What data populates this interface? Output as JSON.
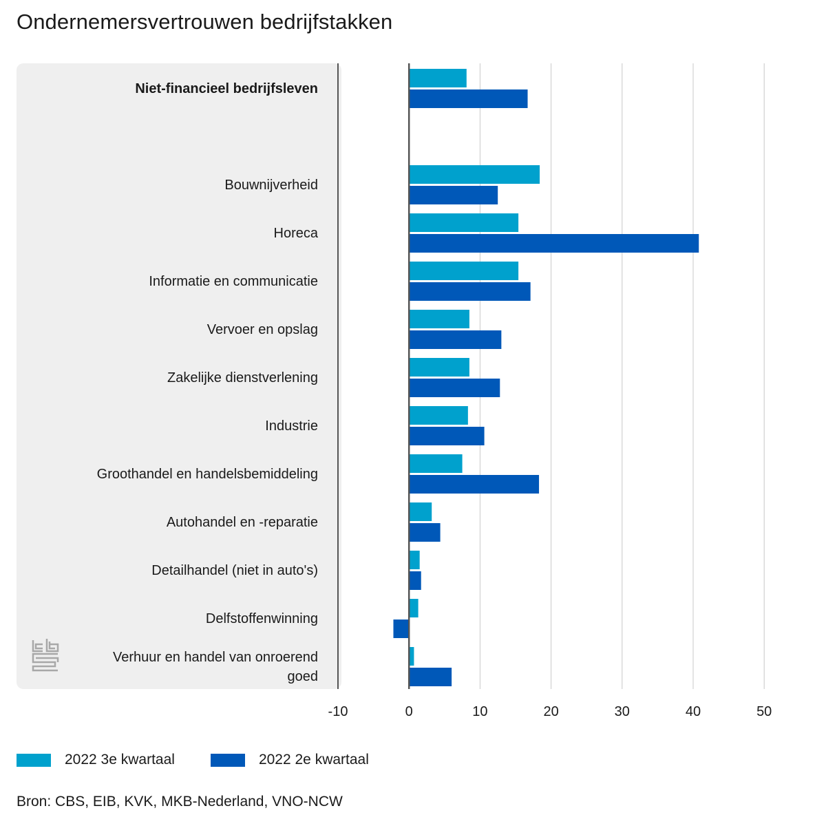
{
  "chart_data": {
    "type": "bar",
    "orientation": "horizontal",
    "title": "Ondernemersvertrouwen bedrijfstakken",
    "categories": [
      "Niet-financieel bedrijfsleven",
      "Bouwnijverheid",
      "Horeca",
      "Informatie en communicatie",
      "Vervoer en opslag",
      "Zakelijke dienstverlening",
      "Industrie",
      "Groothandel en handelsbemiddeling",
      "Autohandel en -reparatie",
      "Detailhandel (niet in auto's)",
      "Delfstoffenwinning",
      "Verhuur en handel van onroerend goed"
    ],
    "category_label_lines": [
      [
        "Niet-financieel bedrijfsleven"
      ],
      [
        "Bouwnijverheid"
      ],
      [
        "Horeca"
      ],
      [
        "Informatie en communicatie"
      ],
      [
        "Vervoer en opslag"
      ],
      [
        "Zakelijke dienstverlening"
      ],
      [
        "Industrie"
      ],
      [
        "Groothandel en handelsbemiddeling"
      ],
      [
        "Autohandel en -reparatie"
      ],
      [
        "Detailhandel (niet in auto's)"
      ],
      [
        "Delfstoffenwinning"
      ],
      [
        "Verhuur en handel van onroerend",
        "goed"
      ]
    ],
    "highlighted_category": "Niet-financieel bedrijfsleven",
    "series": [
      {
        "name": "2022 3e kwartaal",
        "color": "#00A1CD",
        "values": [
          8.1,
          18.4,
          15.4,
          15.4,
          8.5,
          8.5,
          8.3,
          7.5,
          3.2,
          1.5,
          1.3,
          0.7
        ]
      },
      {
        "name": "2022 2e kwartaal",
        "color": "#0058B8",
        "values": [
          16.7,
          12.5,
          40.8,
          17.1,
          13.0,
          12.8,
          10.6,
          18.3,
          4.4,
          1.7,
          -2.2,
          6.0
        ]
      }
    ],
    "xlim": [
      -10,
      50
    ],
    "xticks": [
      "-10",
      "0",
      "10",
      "20",
      "30",
      "40",
      "50"
    ],
    "grid": true,
    "legend_position": "bottom-left"
  },
  "legend": {
    "series_1": "2022 3e kwartaal",
    "series_2": "2022 2e kwartaal"
  },
  "source": "Bron: CBS, EIB, KVK, MKB-Nederland, VNO-NCW",
  "logo": "cbs",
  "colors": {
    "panel_background": "#EFEFEF",
    "gridline": "#C8C8C8",
    "axis": "#555555"
  }
}
